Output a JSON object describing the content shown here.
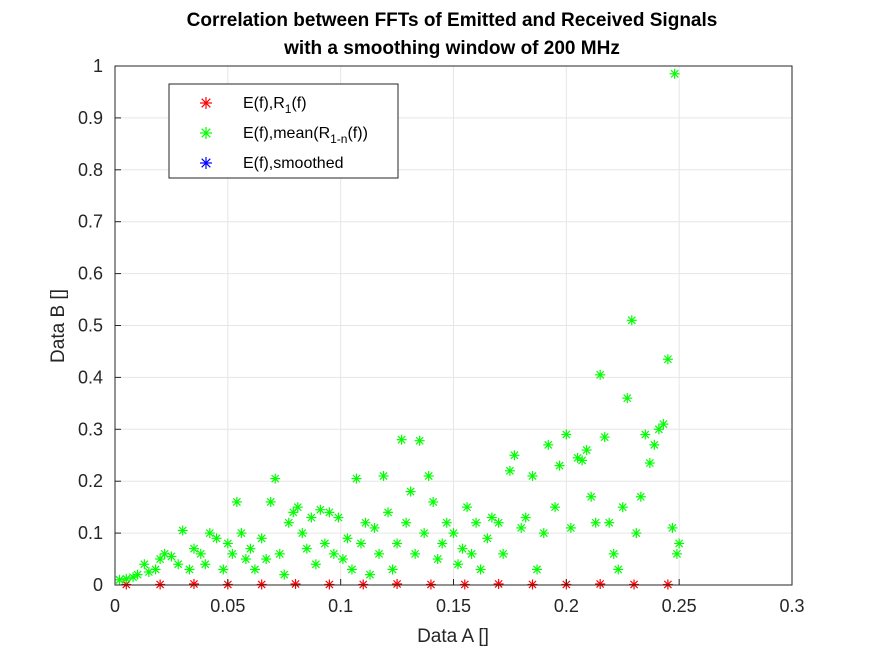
{
  "chart_data": {
    "type": "scatter",
    "title": [
      "Correlation between FFTs of Emitted and Received Signals",
      "with a smoothing window of 200 MHz"
    ],
    "xlabel": "Data A []",
    "ylabel": "Data B []",
    "xlim": [
      0,
      0.3
    ],
    "ylim": [
      0,
      1
    ],
    "xticks": [
      0,
      0.05,
      0.1,
      0.15,
      0.2,
      0.25,
      0.3
    ],
    "xtick_labels": [
      "0",
      "0.05",
      "0.1",
      "0.15",
      "0.2",
      "0.25",
      "0.3"
    ],
    "yticks": [
      0,
      0.1,
      0.2,
      0.3,
      0.4,
      0.5,
      0.6,
      0.7,
      0.8,
      0.9,
      1
    ],
    "ytick_labels": [
      "0",
      "0.1",
      "0.2",
      "0.3",
      "0.4",
      "0.5",
      "0.6",
      "0.7",
      "0.8",
      "0.9",
      "1"
    ],
    "grid": true,
    "legend_position": "top-left",
    "marker": "*",
    "series": [
      {
        "name": "E(f),R",
        "name_sub": "1",
        "name_suffix": "(f)",
        "color": "#ff0000",
        "points": [
          [
            0.005,
            0.001
          ],
          [
            0.02,
            0.001
          ],
          [
            0.035,
            0.002
          ],
          [
            0.05,
            0.001
          ],
          [
            0.065,
            0.001
          ],
          [
            0.08,
            0.002
          ],
          [
            0.095,
            0.001
          ],
          [
            0.11,
            0.001
          ],
          [
            0.125,
            0.002
          ],
          [
            0.14,
            0.001
          ],
          [
            0.155,
            0.001
          ],
          [
            0.17,
            0.002
          ],
          [
            0.185,
            0.001
          ],
          [
            0.2,
            0.001
          ],
          [
            0.215,
            0.002
          ],
          [
            0.23,
            0.001
          ],
          [
            0.245,
            0.001
          ]
        ]
      },
      {
        "name": "E(f),mean(R",
        "name_sub": "1-n",
        "name_suffix": "(f))",
        "color": "#00ff00",
        "points": [
          [
            0.002,
            0.01
          ],
          [
            0.005,
            0.012
          ],
          [
            0.008,
            0.015
          ],
          [
            0.01,
            0.02
          ],
          [
            0.013,
            0.04
          ],
          [
            0.015,
            0.025
          ],
          [
            0.018,
            0.03
          ],
          [
            0.02,
            0.05
          ],
          [
            0.022,
            0.06
          ],
          [
            0.025,
            0.055
          ],
          [
            0.028,
            0.04
          ],
          [
            0.03,
            0.105
          ],
          [
            0.033,
            0.03
          ],
          [
            0.035,
            0.07
          ],
          [
            0.038,
            0.06
          ],
          [
            0.04,
            0.04
          ],
          [
            0.042,
            0.1
          ],
          [
            0.045,
            0.09
          ],
          [
            0.048,
            0.03
          ],
          [
            0.05,
            0.08
          ],
          [
            0.052,
            0.06
          ],
          [
            0.054,
            0.16
          ],
          [
            0.056,
            0.1
          ],
          [
            0.058,
            0.05
          ],
          [
            0.06,
            0.07
          ],
          [
            0.062,
            0.03
          ],
          [
            0.065,
            0.09
          ],
          [
            0.067,
            0.05
          ],
          [
            0.069,
            0.16
          ],
          [
            0.071,
            0.205
          ],
          [
            0.073,
            0.06
          ],
          [
            0.075,
            0.02
          ],
          [
            0.077,
            0.12
          ],
          [
            0.079,
            0.14
          ],
          [
            0.081,
            0.15
          ],
          [
            0.083,
            0.1
          ],
          [
            0.085,
            0.07
          ],
          [
            0.087,
            0.13
          ],
          [
            0.089,
            0.04
          ],
          [
            0.091,
            0.145
          ],
          [
            0.093,
            0.08
          ],
          [
            0.095,
            0.14
          ],
          [
            0.097,
            0.06
          ],
          [
            0.099,
            0.13
          ],
          [
            0.101,
            0.05
          ],
          [
            0.103,
            0.09
          ],
          [
            0.105,
            0.03
          ],
          [
            0.107,
            0.205
          ],
          [
            0.109,
            0.08
          ],
          [
            0.111,
            0.12
          ],
          [
            0.113,
            0.02
          ],
          [
            0.115,
            0.11
          ],
          [
            0.117,
            0.06
          ],
          [
            0.119,
            0.21
          ],
          [
            0.121,
            0.14
          ],
          [
            0.123,
            0.03
          ],
          [
            0.125,
            0.08
          ],
          [
            0.127,
            0.28
          ],
          [
            0.129,
            0.12
          ],
          [
            0.131,
            0.18
          ],
          [
            0.133,
            0.06
          ],
          [
            0.135,
            0.278
          ],
          [
            0.137,
            0.1
          ],
          [
            0.139,
            0.21
          ],
          [
            0.141,
            0.16
          ],
          [
            0.143,
            0.05
          ],
          [
            0.145,
            0.08
          ],
          [
            0.147,
            0.12
          ],
          [
            0.15,
            0.1
          ],
          [
            0.152,
            0.04
          ],
          [
            0.154,
            0.07
          ],
          [
            0.156,
            0.15
          ],
          [
            0.158,
            0.06
          ],
          [
            0.16,
            0.12
          ],
          [
            0.162,
            0.03
          ],
          [
            0.165,
            0.09
          ],
          [
            0.167,
            0.13
          ],
          [
            0.17,
            0.12
          ],
          [
            0.172,
            0.06
          ],
          [
            0.175,
            0.22
          ],
          [
            0.177,
            0.25
          ],
          [
            0.18,
            0.11
          ],
          [
            0.182,
            0.13
          ],
          [
            0.185,
            0.21
          ],
          [
            0.187,
            0.03
          ],
          [
            0.19,
            0.1
          ],
          [
            0.192,
            0.27
          ],
          [
            0.195,
            0.15
          ],
          [
            0.197,
            0.23
          ],
          [
            0.2,
            0.29
          ],
          [
            0.202,
            0.11
          ],
          [
            0.205,
            0.245
          ],
          [
            0.207,
            0.24
          ],
          [
            0.209,
            0.26
          ],
          [
            0.211,
            0.17
          ],
          [
            0.213,
            0.12
          ],
          [
            0.215,
            0.405
          ],
          [
            0.217,
            0.285
          ],
          [
            0.219,
            0.12
          ],
          [
            0.221,
            0.06
          ],
          [
            0.223,
            0.03
          ],
          [
            0.225,
            0.15
          ],
          [
            0.227,
            0.36
          ],
          [
            0.229,
            0.51
          ],
          [
            0.231,
            0.1
          ],
          [
            0.233,
            0.17
          ],
          [
            0.235,
            0.29
          ],
          [
            0.237,
            0.235
          ],
          [
            0.239,
            0.27
          ],
          [
            0.241,
            0.3
          ],
          [
            0.243,
            0.31
          ],
          [
            0.245,
            0.435
          ],
          [
            0.247,
            0.11
          ],
          [
            0.248,
            0.985
          ],
          [
            0.249,
            0.06
          ],
          [
            0.25,
            0.08
          ]
        ]
      },
      {
        "name": "E(f),smoothed",
        "name_sub": "",
        "name_suffix": "",
        "color": "#0000ff",
        "points": []
      }
    ]
  }
}
